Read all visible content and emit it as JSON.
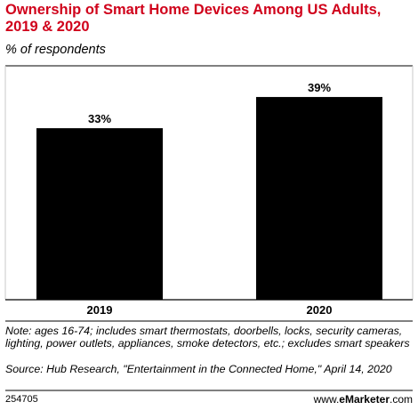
{
  "chart_data": {
    "type": "bar",
    "title": "Ownership of Smart Home Devices Among US Adults, 2019 & 2020",
    "subtitle": "% of respondents",
    "categories": [
      "2019",
      "2020"
    ],
    "values": [
      33,
      39
    ],
    "value_labels": [
      "33%",
      "39%"
    ],
    "xlabel": "",
    "ylabel": "",
    "ylim": [
      0,
      45
    ],
    "grid": false,
    "bar_color": "#000000",
    "title_color": "#d0021b"
  },
  "footer": {
    "note": "Note: ages 16-74; includes smart thermostats, doorbells, locks, security cameras, lighting, power outlets, appliances, smoke detectors, etc.; excludes smart speakers",
    "source": "Source: Hub Research, \"Entertainment in the Connected Home,\" April 14, 2020",
    "chart_id": "254705",
    "brand_prefix": "www.",
    "brand_name": "eMarketer",
    "brand_suffix": ".com"
  }
}
